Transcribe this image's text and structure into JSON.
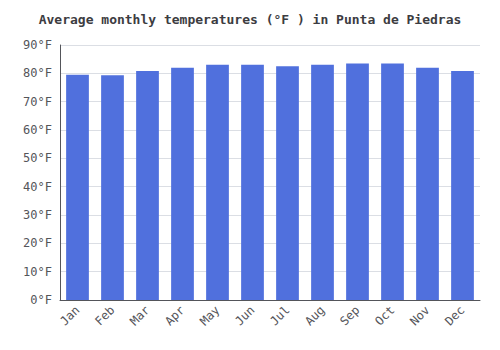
{
  "chart_data": {
    "type": "bar",
    "title": "Average monthly temperatures (°F ) in Punta de Piedras",
    "categories": [
      "Jan",
      "Feb",
      "Mar",
      "Apr",
      "May",
      "Jun",
      "Jul",
      "Aug",
      "Sep",
      "Oct",
      "Nov",
      "Dec"
    ],
    "values": [
      79.5,
      79.3,
      80.8,
      82.0,
      83.0,
      83.0,
      82.5,
      83.0,
      83.5,
      83.5,
      82.0,
      80.8
    ],
    "ylim": [
      0,
      90
    ],
    "yticks": [
      {
        "value": 0,
        "label": "0°F"
      },
      {
        "value": 10,
        "label": "10°F"
      },
      {
        "value": 20,
        "label": "20°F"
      },
      {
        "value": 30,
        "label": "30°F"
      },
      {
        "value": 40,
        "label": "40°F"
      },
      {
        "value": 50,
        "label": "50°F"
      },
      {
        "value": 60,
        "label": "60°F"
      },
      {
        "value": 70,
        "label": "70°F"
      },
      {
        "value": 80,
        "label": "80°F"
      },
      {
        "value": 90,
        "label": "90°F"
      }
    ],
    "grid": true
  }
}
